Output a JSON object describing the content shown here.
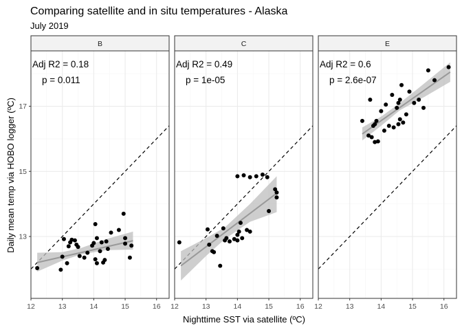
{
  "chart_data": {
    "type": "scatter",
    "title": "Comparing satellite and in situ temperatures - Alaska",
    "subtitle": "July 2019",
    "xlabel": "Nighttime SST via satellite (ºC)",
    "ylabel": "Daily mean temp via HOBO logger (ºC)",
    "xlim": [
      12,
      16.4
    ],
    "ylim": [
      11.1,
      18.7
    ],
    "x_ticks": [
      12,
      13,
      14,
      15,
      16
    ],
    "y_ticks": [
      13,
      15,
      17
    ],
    "grid": true,
    "reference_line": "y = x (dashed)",
    "colors": {
      "points": "#000000",
      "fit_line": "#999999",
      "ribbon": "#bdbdbd",
      "grid_major": "#ebebeb",
      "grid_minor": "#f5f5f5",
      "strip_fill": "#f2f2f2",
      "panel_border": "#333333"
    },
    "panels": [
      {
        "strip": "B",
        "annot_r2": "Adj R2 = 0.18",
        "annot_p": "p = 0.011",
        "fit": {
          "x0": 12.2,
          "y0": 12.2,
          "x1": 15.25,
          "y1": 12.87
        },
        "ci": [
          {
            "x": 12.2,
            "lo": 11.92,
            "hi": 12.5
          },
          {
            "x": 13.0,
            "lo": 12.26,
            "hi": 12.52
          },
          {
            "x": 13.6,
            "lo": 12.45,
            "hi": 12.65
          },
          {
            "x": 14.4,
            "lo": 12.58,
            "hi": 12.92
          },
          {
            "x": 15.25,
            "lo": 12.6,
            "hi": 13.15
          }
        ],
        "points": [
          [
            12.2,
            12.03
          ],
          [
            12.95,
            11.98
          ],
          [
            13.0,
            12.38
          ],
          [
            13.05,
            12.92
          ],
          [
            13.15,
            12.18
          ],
          [
            13.2,
            12.7
          ],
          [
            13.25,
            12.82
          ],
          [
            13.3,
            12.9
          ],
          [
            13.4,
            12.88
          ],
          [
            13.45,
            12.75
          ],
          [
            13.5,
            12.68
          ],
          [
            13.55,
            12.4
          ],
          [
            13.7,
            12.35
          ],
          [
            13.8,
            12.5
          ],
          [
            13.95,
            12.72
          ],
          [
            14.0,
            12.8
          ],
          [
            14.05,
            12.3
          ],
          [
            14.1,
            12.95
          ],
          [
            14.05,
            13.38
          ],
          [
            14.1,
            12.18
          ],
          [
            14.2,
            12.55
          ],
          [
            14.25,
            12.82
          ],
          [
            14.3,
            12.2
          ],
          [
            14.35,
            12.28
          ],
          [
            14.4,
            12.85
          ],
          [
            14.45,
            12.62
          ],
          [
            14.55,
            13.12
          ],
          [
            14.8,
            13.2
          ],
          [
            14.95,
            13.7
          ],
          [
            15.0,
            12.78
          ],
          [
            15.2,
            12.72
          ],
          [
            15.15,
            12.35
          ],
          [
            15.0,
            12.95
          ]
        ]
      },
      {
        "strip": "C",
        "annot_r2": "Adj R2 = 0.49",
        "annot_p": "p = 1e-05",
        "fit": {
          "x0": 12.2,
          "y0": 12.1,
          "x1": 15.25,
          "y1": 14.33
        },
        "ci": [
          {
            "x": 12.2,
            "lo": 11.65,
            "hi": 12.55
          },
          {
            "x": 13.0,
            "lo": 12.4,
            "hi": 12.95
          },
          {
            "x": 13.6,
            "lo": 12.92,
            "hi": 13.28
          },
          {
            "x": 14.4,
            "lo": 13.45,
            "hi": 14.0
          },
          {
            "x": 15.25,
            "lo": 13.75,
            "hi": 14.85
          }
        ],
        "points": [
          [
            12.15,
            12.82
          ],
          [
            13.05,
            13.22
          ],
          [
            13.1,
            12.75
          ],
          [
            13.2,
            12.55
          ],
          [
            13.25,
            12.52
          ],
          [
            13.35,
            13.02
          ],
          [
            13.45,
            12.1
          ],
          [
            13.55,
            13.25
          ],
          [
            13.6,
            12.88
          ],
          [
            13.65,
            12.95
          ],
          [
            13.75,
            12.85
          ],
          [
            13.9,
            12.92
          ],
          [
            14.0,
            12.88
          ],
          [
            14.0,
            13.05
          ],
          [
            14.05,
            13.15
          ],
          [
            14.1,
            13.42
          ],
          [
            14.15,
            12.95
          ],
          [
            14.0,
            14.85
          ],
          [
            14.2,
            14.88
          ],
          [
            14.3,
            13.2
          ],
          [
            14.4,
            13.15
          ],
          [
            14.4,
            14.82
          ],
          [
            14.6,
            14.85
          ],
          [
            14.8,
            14.9
          ],
          [
            14.95,
            14.82
          ],
          [
            15.0,
            13.78
          ],
          [
            15.2,
            14.45
          ],
          [
            15.25,
            14.2
          ],
          [
            15.25,
            14.35
          ]
        ]
      },
      {
        "strip": "E",
        "annot_r2": "Adj R2 = 0.6",
        "annot_p": "p = 2.6e-07",
        "fit": {
          "x0": 13.4,
          "y0": 16.15,
          "x1": 16.2,
          "y1": 18.05
        },
        "ci": [
          {
            "x": 13.4,
            "lo": 15.95,
            "hi": 16.35
          },
          {
            "x": 14.0,
            "lo": 16.4,
            "hi": 16.68
          },
          {
            "x": 14.6,
            "lo": 16.88,
            "hi": 17.1
          },
          {
            "x": 15.4,
            "lo": 17.3,
            "hi": 17.72
          },
          {
            "x": 16.2,
            "lo": 17.75,
            "hi": 18.35
          }
        ],
        "points": [
          [
            13.4,
            16.55
          ],
          [
            13.6,
            16.1
          ],
          [
            13.65,
            17.2
          ],
          [
            13.7,
            16.05
          ],
          [
            13.75,
            16.4
          ],
          [
            13.8,
            16.45
          ],
          [
            13.8,
            15.9
          ],
          [
            13.85,
            16.55
          ],
          [
            13.9,
            15.92
          ],
          [
            14.0,
            16.85
          ],
          [
            14.1,
            16.25
          ],
          [
            14.15,
            17.05
          ],
          [
            14.25,
            16.4
          ],
          [
            14.35,
            17.35
          ],
          [
            14.4,
            16.35
          ],
          [
            14.5,
            16.95
          ],
          [
            14.55,
            16.45
          ],
          [
            14.55,
            17.1
          ],
          [
            14.6,
            17.2
          ],
          [
            14.6,
            16.6
          ],
          [
            14.65,
            17.65
          ],
          [
            14.7,
            16.5
          ],
          [
            14.8,
            16.75
          ],
          [
            14.9,
            17.45
          ],
          [
            15.05,
            17.1
          ],
          [
            15.2,
            17.2
          ],
          [
            15.35,
            16.95
          ],
          [
            15.5,
            18.1
          ],
          [
            15.7,
            17.8
          ],
          [
            16.15,
            18.2
          ]
        ]
      }
    ]
  }
}
